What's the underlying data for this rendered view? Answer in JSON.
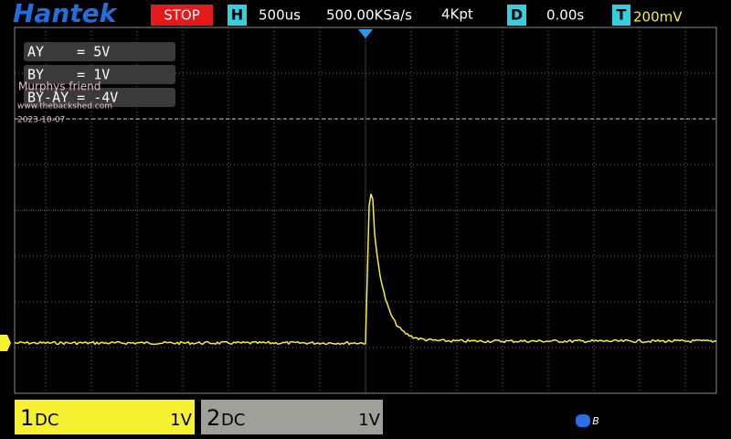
{
  "header": {
    "brand": "Hantek",
    "status": "STOP",
    "h_label": "H",
    "timebase": "500us",
    "sample_rate": "500.00KSa/s",
    "memory": "4Kpt",
    "d_label": "D",
    "delay": "0.00s",
    "t_label": "T",
    "trigger_level": "200mV"
  },
  "cursors": [
    "AY    = 5V",
    "BY    = 1V",
    "BY-AY = -4V"
  ],
  "watermark": {
    "name": "Murphys friend",
    "site": "www.thebackshed.com",
    "date": "2023-10-07"
  },
  "channels": [
    {
      "number": "1",
      "coupling": "DC",
      "scale": "1V"
    },
    {
      "number": "2",
      "coupling": "DC",
      "scale": "1V"
    }
  ],
  "status_icon": "B"
}
